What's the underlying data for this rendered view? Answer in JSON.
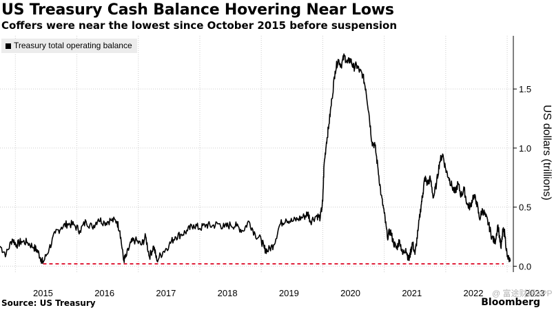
{
  "title": "US Treasury Cash Balance Hovering Near Lows",
  "subtitle": "Coffers were near the lowest since October 2015 before suspension",
  "source": "Source: US Treasury",
  "brand": "Bloomberg",
  "watermark": "@ 富途财经APP",
  "colors": {
    "line": "#000000",
    "reference": "#e0203a",
    "grid": "#cccccc",
    "legend_bg": "#ececec"
  },
  "chart_data": {
    "type": "line",
    "title": "US Treasury Cash Balance Hovering Near Lows",
    "subtitle": "Coffers were near the lowest since October 2015 before suspension",
    "ylabel": "US dollars (trillions)",
    "y_axis_side": "right",
    "ylim": [
      -0.05,
      1.95
    ],
    "yticks": [
      0.0,
      0.5,
      1.0,
      1.5
    ],
    "ytick_labels": [
      "0.0",
      "0.5",
      "1.0",
      "1.5"
    ],
    "xlim": [
      2014.75,
      2023.1
    ],
    "xticks": [
      2015,
      2016,
      2017,
      2018,
      2019,
      2020,
      2021,
      2022,
      2023
    ],
    "xtick_labels": [
      "2015",
      "2016",
      "2017",
      "2018",
      "2019",
      "2020",
      "2021",
      "2022",
      "2023"
    ],
    "grid": "dotted, both axes",
    "legend": {
      "position": "top-left",
      "entries": [
        "Treasury total operating balance"
      ]
    },
    "reference_line": {
      "y": 0.02,
      "x_from": 2015.45,
      "style": "dashed"
    },
    "series": [
      {
        "name": "Treasury total operating balance",
        "x": [
          2014.75,
          2014.85,
          2014.95,
          2015.02,
          2015.1,
          2015.2,
          2015.3,
          2015.36,
          2015.42,
          2015.45,
          2015.55,
          2015.65,
          2015.75,
          2015.85,
          2015.95,
          2016.05,
          2016.15,
          2016.25,
          2016.35,
          2016.45,
          2016.55,
          2016.65,
          2016.7,
          2016.76,
          2016.8,
          2016.88,
          2016.95,
          2017.05,
          2017.12,
          2017.18,
          2017.25,
          2017.3,
          2017.4,
          2017.5,
          2017.6,
          2017.7,
          2017.8,
          2017.9,
          2018.0,
          2018.1,
          2018.2,
          2018.3,
          2018.4,
          2018.5,
          2018.6,
          2018.7,
          2018.8,
          2018.9,
          2019.0,
          2019.05,
          2019.1,
          2019.2,
          2019.3,
          2019.4,
          2019.5,
          2019.6,
          2019.7,
          2019.76,
          2019.8,
          2019.9,
          2019.96,
          2020.0,
          2020.02,
          2020.06,
          2020.1,
          2020.15,
          2020.2,
          2020.25,
          2020.3,
          2020.35,
          2020.4,
          2020.45,
          2020.5,
          2020.55,
          2020.6,
          2020.65,
          2020.7,
          2020.75,
          2020.8,
          2020.85,
          2020.9,
          2020.95,
          2021.0,
          2021.05,
          2021.1,
          2021.15,
          2021.2,
          2021.25,
          2021.3,
          2021.35,
          2021.4,
          2021.43,
          2021.46,
          2021.5,
          2021.55,
          2021.6,
          2021.63,
          2021.66,
          2021.7,
          2021.75,
          2021.8,
          2021.85,
          2021.9,
          2021.95,
          2022.0,
          2022.05,
          2022.1,
          2022.15,
          2022.2,
          2022.25,
          2022.3,
          2022.35,
          2022.4,
          2022.45,
          2022.5,
          2022.55,
          2022.6,
          2022.65,
          2022.7,
          2022.75,
          2022.8,
          2022.85,
          2022.9,
          2022.93,
          2022.96,
          2023.0,
          2023.05
        ],
        "y": [
          0.17,
          0.1,
          0.23,
          0.18,
          0.21,
          0.2,
          0.16,
          0.13,
          0.06,
          0.03,
          0.15,
          0.28,
          0.33,
          0.36,
          0.35,
          0.3,
          0.38,
          0.33,
          0.4,
          0.37,
          0.39,
          0.38,
          0.3,
          0.05,
          0.08,
          0.2,
          0.22,
          0.18,
          0.25,
          0.08,
          0.17,
          0.05,
          0.12,
          0.18,
          0.25,
          0.27,
          0.3,
          0.35,
          0.32,
          0.35,
          0.34,
          0.36,
          0.33,
          0.35,
          0.34,
          0.3,
          0.38,
          0.27,
          0.22,
          0.15,
          0.13,
          0.18,
          0.35,
          0.4,
          0.38,
          0.4,
          0.42,
          0.45,
          0.38,
          0.43,
          0.41,
          0.55,
          0.85,
          1.05,
          1.2,
          1.42,
          1.65,
          1.75,
          1.7,
          1.78,
          1.72,
          1.75,
          1.68,
          1.7,
          1.65,
          1.62,
          1.5,
          1.3,
          1.05,
          1.02,
          0.82,
          0.6,
          0.45,
          0.25,
          0.3,
          0.2,
          0.15,
          0.22,
          0.1,
          0.15,
          0.05,
          0.12,
          0.2,
          0.1,
          0.3,
          0.52,
          0.62,
          0.75,
          0.7,
          0.74,
          0.58,
          0.7,
          0.88,
          0.95,
          0.82,
          0.75,
          0.68,
          0.62,
          0.7,
          0.6,
          0.65,
          0.52,
          0.5,
          0.6,
          0.55,
          0.4,
          0.48,
          0.42,
          0.35,
          0.25,
          0.2,
          0.35,
          0.15,
          0.3,
          0.28,
          0.08,
          0.04
        ]
      }
    ]
  }
}
